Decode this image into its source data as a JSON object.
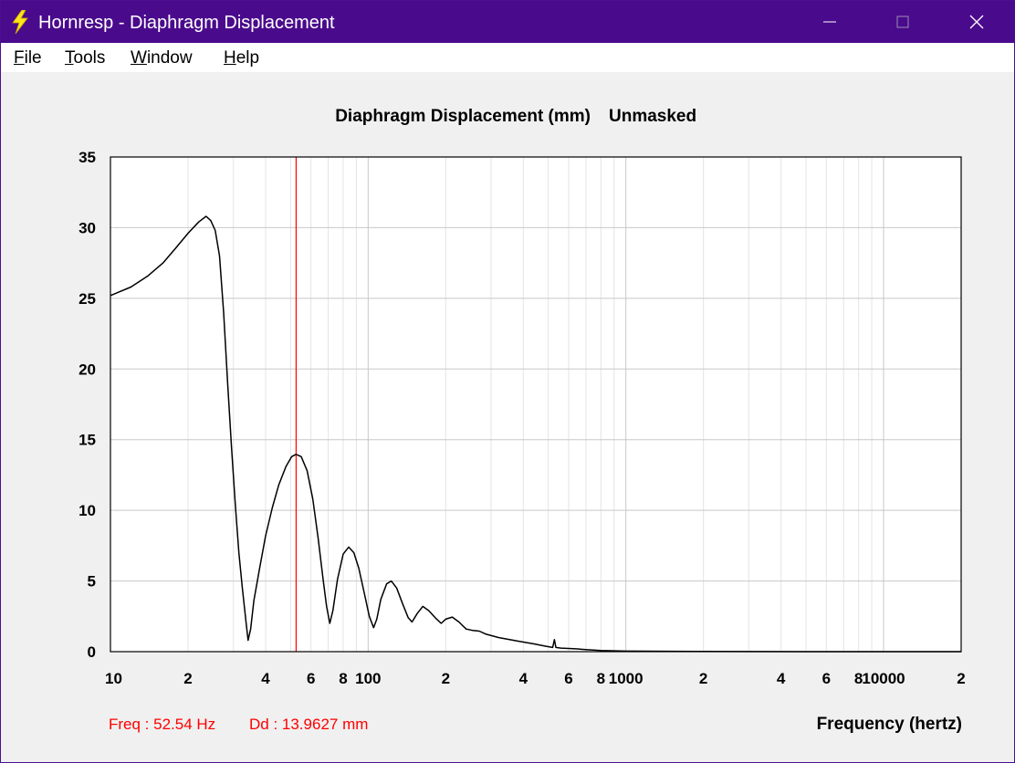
{
  "window": {
    "title": "Hornresp - Diaphragm Displacement",
    "controls": [
      "minimize",
      "maximize",
      "close"
    ]
  },
  "menu": {
    "items": [
      {
        "label": "File",
        "mnemonic": "F",
        "rest": "ile"
      },
      {
        "label": "Tools",
        "mnemonic": "T",
        "rest": "ools"
      },
      {
        "label": "Window",
        "mnemonic": "W",
        "rest": "indow"
      },
      {
        "label": "Help",
        "mnemonic": "H",
        "rest": "elp"
      }
    ]
  },
  "chart_data": {
    "type": "line",
    "title": "Diaphragm Displacement (mm)",
    "status": "Unmasked",
    "xlabel": "Frequency (hertz)",
    "ylabel": "",
    "x_scale": "log",
    "xlim": [
      10,
      20000
    ],
    "ylim": [
      0,
      35
    ],
    "y_ticks": [
      0,
      5,
      10,
      15,
      20,
      25,
      30,
      35
    ],
    "x_tick_labels": [
      {
        "value": 10,
        "label": "10"
      },
      {
        "value": 20,
        "label": "2"
      },
      {
        "value": 40,
        "label": "4"
      },
      {
        "value": 60,
        "label": "6"
      },
      {
        "value": 80,
        "label": "8"
      },
      {
        "value": 100,
        "label": "100"
      },
      {
        "value": 200,
        "label": "2"
      },
      {
        "value": 400,
        "label": "4"
      },
      {
        "value": 600,
        "label": "6"
      },
      {
        "value": 800,
        "label": "8"
      },
      {
        "value": 1000,
        "label": "1000"
      },
      {
        "value": 2000,
        "label": "2"
      },
      {
        "value": 4000,
        "label": "4"
      },
      {
        "value": 6000,
        "label": "6"
      },
      {
        "value": 8000,
        "label": "8"
      },
      {
        "value": 10000,
        "label": "10000"
      },
      {
        "value": 20000,
        "label": "2"
      }
    ],
    "grid": true,
    "cursor": {
      "freq_hz": 52.54,
      "color": "#ff0000"
    },
    "readout": {
      "freq": "Freq : 52.54 Hz",
      "dd": "Dd : 13.9627 mm",
      "color": "#ff0000"
    },
    "series": [
      {
        "color": "#000000",
        "points": [
          [
            10,
            25.2
          ],
          [
            12,
            25.8
          ],
          [
            14,
            26.6
          ],
          [
            16,
            27.5
          ],
          [
            18,
            28.6
          ],
          [
            20,
            29.6
          ],
          [
            22,
            30.4
          ],
          [
            23.5,
            30.8
          ],
          [
            24.5,
            30.5
          ],
          [
            25.5,
            29.8
          ],
          [
            26.5,
            28.0
          ],
          [
            27.5,
            24.0
          ],
          [
            28.5,
            19.0
          ],
          [
            29.5,
            14.5
          ],
          [
            30.5,
            10.5
          ],
          [
            31.5,
            7.0
          ],
          [
            32.5,
            4.5
          ],
          [
            33.5,
            2.3
          ],
          [
            34.2,
            0.8
          ],
          [
            35,
            1.6
          ],
          [
            36,
            3.6
          ],
          [
            38,
            6.0
          ],
          [
            40,
            8.2
          ],
          [
            42.5,
            10.2
          ],
          [
            45,
            11.8
          ],
          [
            48,
            13.1
          ],
          [
            50.5,
            13.8
          ],
          [
            52.5,
            13.96
          ],
          [
            55,
            13.8
          ],
          [
            58,
            12.8
          ],
          [
            61,
            10.8
          ],
          [
            64,
            8.0
          ],
          [
            67,
            5.0
          ],
          [
            69,
            3.2
          ],
          [
            71,
            2.0
          ],
          [
            73,
            2.9
          ],
          [
            76,
            5.1
          ],
          [
            80,
            6.9
          ],
          [
            84,
            7.4
          ],
          [
            88,
            7.0
          ],
          [
            92,
            5.9
          ],
          [
            97,
            4.0
          ],
          [
            101,
            2.5
          ],
          [
            105,
            1.7
          ],
          [
            108,
            2.3
          ],
          [
            112,
            3.7
          ],
          [
            118,
            4.8
          ],
          [
            123,
            5.0
          ],
          [
            129,
            4.5
          ],
          [
            136,
            3.4
          ],
          [
            143,
            2.4
          ],
          [
            148,
            2.1
          ],
          [
            155,
            2.7
          ],
          [
            163,
            3.2
          ],
          [
            172,
            2.9
          ],
          [
            182,
            2.4
          ],
          [
            192,
            2.0
          ],
          [
            200,
            2.3
          ],
          [
            212,
            2.45
          ],
          [
            225,
            2.1
          ],
          [
            240,
            1.6
          ],
          [
            255,
            1.5
          ],
          [
            270,
            1.45
          ],
          [
            285,
            1.25
          ],
          [
            320,
            1.0
          ],
          [
            380,
            0.75
          ],
          [
            440,
            0.55
          ],
          [
            490,
            0.38
          ],
          [
            520,
            0.3
          ],
          [
            528,
            0.85
          ],
          [
            535,
            0.3
          ],
          [
            560,
            0.25
          ],
          [
            640,
            0.2
          ],
          [
            700,
            0.15
          ],
          [
            800,
            0.08
          ],
          [
            1000,
            0.04
          ],
          [
            2000,
            0.01
          ],
          [
            5000,
            0.0
          ],
          [
            20000,
            0.0
          ]
        ]
      }
    ]
  }
}
